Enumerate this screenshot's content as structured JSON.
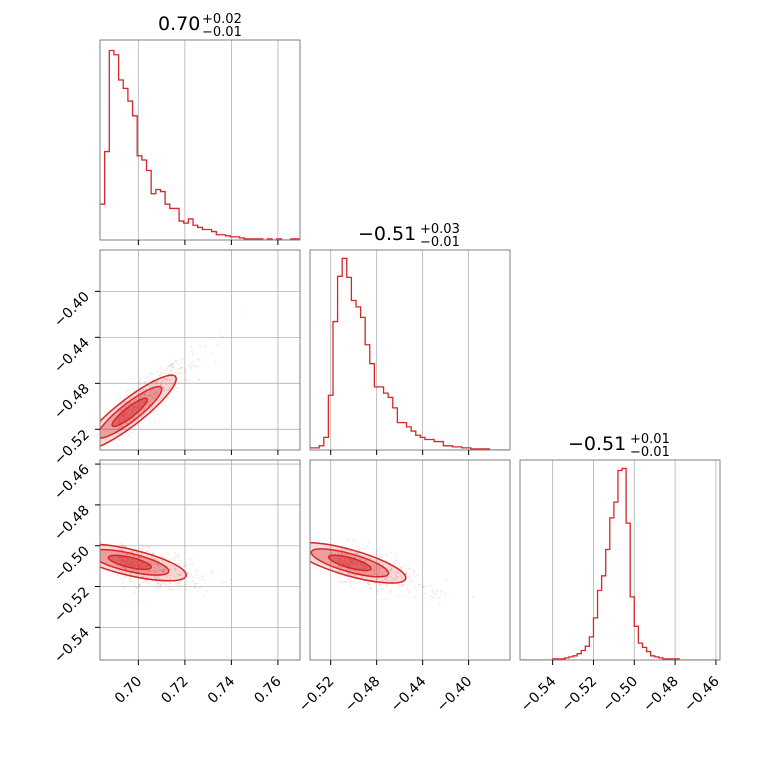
{
  "figure": {
    "accent_color": "#d62728",
    "grid_color": "#b0b0b0",
    "panel_border_color": "#808080",
    "titles": [
      {
        "main": "0.70",
        "sup": "+0.02",
        "sub": "−0.01"
      },
      {
        "main": "−0.51",
        "sup": "+0.03",
        "sub": "−0.01"
      },
      {
        "main": "−0.51",
        "sup": "+0.01",
        "sub": "−0.01"
      }
    ]
  },
  "chart_data": [
    {
      "type": "histogram",
      "panel": "p1-marginal",
      "title": "0.70 +0.02 −0.01",
      "xlim": [
        0.6835,
        0.7695
      ],
      "bins": [
        0.6835,
        0.6855,
        0.6875,
        0.6895,
        0.6915,
        0.6935,
        0.6955,
        0.6975,
        0.6995,
        0.7015,
        0.7035,
        0.7055,
        0.7075,
        0.7095,
        0.7115,
        0.7135,
        0.7155,
        0.7175,
        0.7195,
        0.7215,
        0.7235,
        0.7255,
        0.7275,
        0.7295,
        0.7315,
        0.7335,
        0.7355,
        0.7375,
        0.7395,
        0.7415,
        0.7435,
        0.7455,
        0.7475,
        0.7495,
        0.7515,
        0.7535,
        0.7555,
        0.7575,
        0.7595,
        0.7615,
        0.7635,
        0.7655,
        0.7675,
        0.7695
      ],
      "counts": [
        34,
        84,
        180,
        176,
        152,
        144,
        132,
        118,
        80,
        76,
        66,
        44,
        48,
        46,
        34,
        30,
        30,
        18,
        16,
        20,
        14,
        12,
        10,
        10,
        8,
        5,
        5,
        4,
        3,
        3,
        2,
        1,
        1,
        1,
        1,
        0,
        1,
        0,
        1,
        0,
        0,
        1,
        1
      ],
      "ylim": [
        0,
        190
      ],
      "xticks": [
        0.7,
        0.72,
        0.74,
        0.76
      ]
    },
    {
      "type": "scatter-contour",
      "panel": "p2-vs-p1",
      "xlim": [
        0.6835,
        0.7695
      ],
      "ylim": [
        -0.538,
        -0.364
      ],
      "xticks": [
        0.7,
        0.72,
        0.74,
        0.76
      ],
      "yticks": [
        -0.4,
        -0.44,
        -0.48,
        -0.52
      ],
      "ytick_labels": [
        "−0.40",
        "−0.44",
        "−0.48",
        "−0.52"
      ],
      "density": {
        "x_center": 0.692,
        "y_center": -0.512,
        "slope": 1.58
      }
    },
    {
      "type": "histogram",
      "panel": "p2-marginal",
      "title": "−0.51 +0.03 −0.01",
      "xlim": [
        -0.538,
        -0.364
      ],
      "bins": [
        -0.538,
        -0.534,
        -0.53,
        -0.526,
        -0.522,
        -0.518,
        -0.514,
        -0.51,
        -0.506,
        -0.502,
        -0.498,
        -0.494,
        -0.49,
        -0.486,
        -0.482,
        -0.478,
        -0.474,
        -0.47,
        -0.466,
        -0.462,
        -0.458,
        -0.454,
        -0.45,
        -0.446,
        -0.442,
        -0.438,
        -0.434,
        -0.43,
        -0.426,
        -0.422,
        -0.418,
        -0.414,
        -0.41,
        -0.406,
        -0.402,
        -0.398,
        -0.394,
        -0.39,
        -0.386,
        -0.382,
        -0.378,
        -0.374,
        -0.37,
        -0.366
      ],
      "counts": [
        2,
        2,
        4,
        12,
        52,
        122,
        165,
        182,
        164,
        142,
        136,
        126,
        100,
        82,
        60,
        60,
        54,
        50,
        40,
        26,
        26,
        22,
        18,
        14,
        12,
        10,
        10,
        8,
        8,
        4,
        4,
        3,
        3,
        2,
        2,
        1,
        1,
        1,
        1,
        0,
        0,
        0,
        0
      ],
      "ylim": [
        0,
        190
      ],
      "xticks": [
        -0.52,
        -0.48,
        -0.44,
        -0.4
      ],
      "xtick_labels": [
        "−0.52",
        "−0.48",
        "−0.44",
        "−0.40"
      ]
    },
    {
      "type": "scatter-contour",
      "panel": "p3-vs-p1",
      "xlim": [
        0.6835,
        0.7695
      ],
      "ylim": [
        -0.556,
        -0.458
      ],
      "xticks": [
        0.7,
        0.72,
        0.74,
        0.76
      ],
      "xtick_labels": [
        "0.70",
        "0.72",
        "0.74",
        "0.76"
      ],
      "yticks": [
        -0.46,
        -0.48,
        -0.5,
        -0.52,
        -0.54
      ],
      "ytick_labels": [
        "−0.46",
        "−0.48",
        "−0.50",
        "−0.52",
        "−0.54"
      ],
      "density": {
        "x_center": 0.692,
        "y_center": -0.507,
        "slope": -0.27
      }
    },
    {
      "type": "scatter-contour",
      "panel": "p3-vs-p2",
      "xlim": [
        -0.538,
        -0.364
      ],
      "ylim": [
        -0.556,
        -0.458
      ],
      "xticks": [
        -0.52,
        -0.48,
        -0.44,
        -0.4
      ],
      "xtick_labels": [
        "−0.52",
        "−0.48",
        "−0.44",
        "−0.40"
      ],
      "density": {
        "x_center": -0.512,
        "y_center": -0.507,
        "slope": -0.16
      }
    },
    {
      "type": "histogram",
      "panel": "p3-marginal",
      "title": "−0.51 +0.01 −0.01",
      "xlim": [
        -0.556,
        -0.458
      ],
      "bins": [
        -0.556,
        -0.554,
        -0.552,
        -0.55,
        -0.548,
        -0.546,
        -0.544,
        -0.542,
        -0.54,
        -0.538,
        -0.536,
        -0.534,
        -0.532,
        -0.53,
        -0.528,
        -0.526,
        -0.524,
        -0.522,
        -0.52,
        -0.518,
        -0.516,
        -0.514,
        -0.512,
        -0.51,
        -0.508,
        -0.506,
        -0.504,
        -0.502,
        -0.5,
        -0.498,
        -0.496,
        -0.494,
        -0.492,
        -0.49,
        -0.488,
        -0.486,
        -0.484,
        -0.482,
        -0.48,
        -0.478,
        -0.476,
        -0.474,
        -0.472,
        -0.47,
        -0.468,
        -0.466,
        -0.464,
        -0.462,
        -0.46,
        -0.458
      ],
      "counts": [
        0,
        0,
        0,
        0,
        0,
        0,
        0,
        0,
        1,
        1,
        1,
        2,
        3,
        4,
        6,
        9,
        13,
        22,
        40,
        66,
        80,
        105,
        135,
        150,
        180,
        182,
        130,
        60,
        32,
        16,
        12,
        8,
        4,
        3,
        2,
        1,
        1,
        1,
        1,
        0,
        0,
        0,
        0,
        0,
        0,
        0,
        0,
        0,
        0
      ],
      "ylim": [
        0,
        190
      ],
      "xticks": [
        -0.54,
        -0.52,
        -0.5,
        -0.48,
        -0.46
      ],
      "xtick_labels": [
        "−0.54",
        "−0.52",
        "−0.50",
        "−0.48",
        "−0.46"
      ]
    }
  ]
}
